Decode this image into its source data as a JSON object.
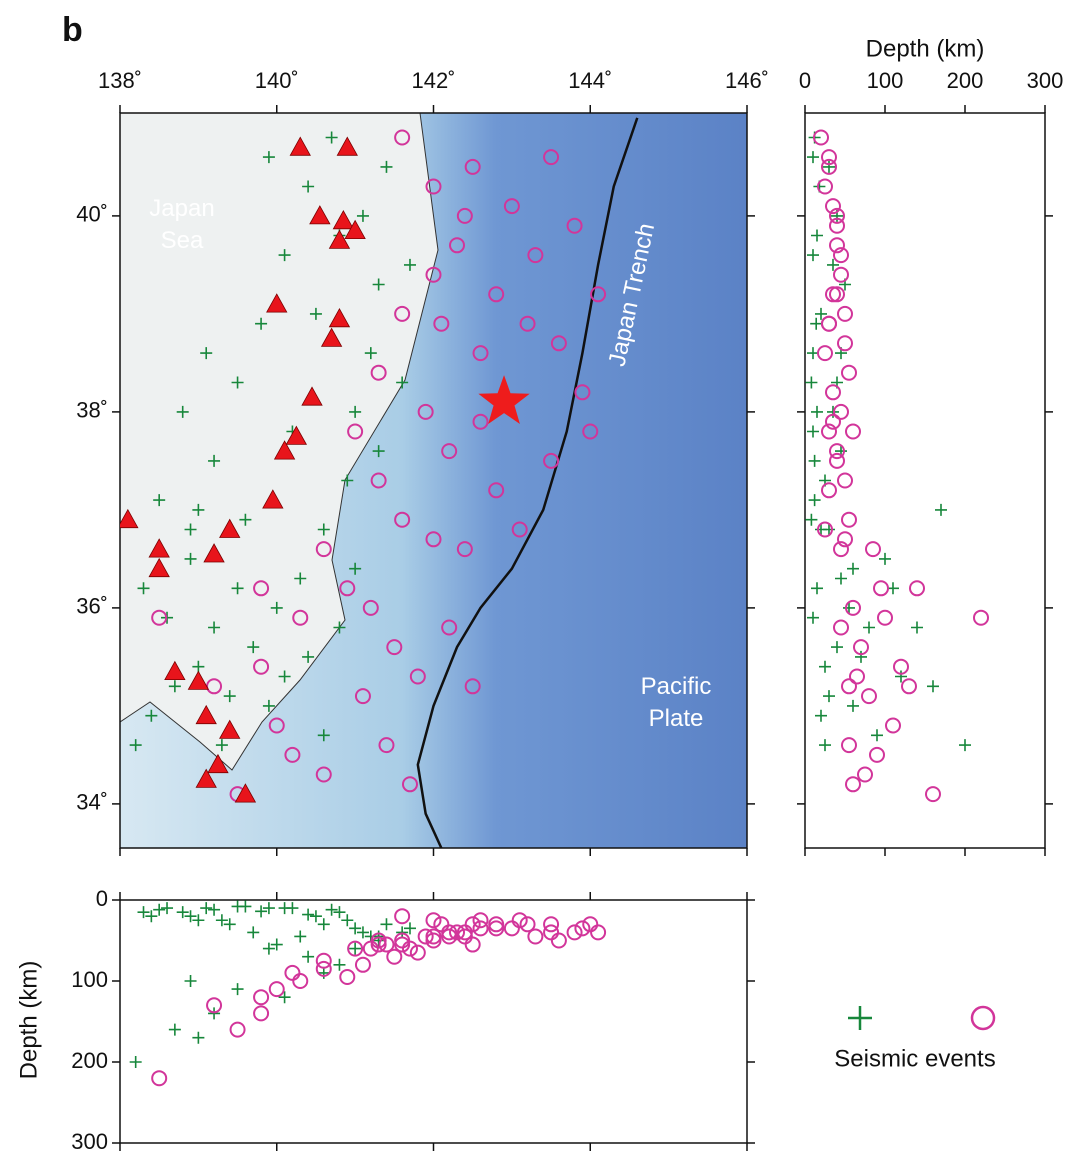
{
  "chart_data": {
    "type": "scatter",
    "panel_label": "b",
    "xlim": [
      138,
      146
    ],
    "xticks": [
      {
        "value": 138,
        "label": "138˚"
      },
      {
        "value": 140,
        "label": "140˚"
      },
      {
        "value": 142,
        "label": "142˚"
      },
      {
        "value": 144,
        "label": "144˚"
      },
      {
        "value": 146,
        "label": "146˚"
      }
    ],
    "ylim": [
      33.55,
      41.05
    ],
    "yticks": [
      {
        "value": 34,
        "label": "34˚"
      },
      {
        "value": 36,
        "label": "36˚"
      },
      {
        "value": 38,
        "label": "38˚"
      },
      {
        "value": 40,
        "label": "40˚"
      }
    ],
    "depth_lim": [
      0,
      300
    ],
    "depth_ticks": [
      0,
      100,
      200,
      300
    ],
    "depth_label_right": "Depth (km)",
    "depth_label_bottom": "Depth (km)",
    "annotations": {
      "sea": "Japan\nSea",
      "trench": "Japan Trench",
      "plate": "Pacific\nPlate"
    },
    "legend": {
      "label": "Seismic events"
    },
    "series": [
      {
        "marker": "plus",
        "color": "#17873b",
        "x": [
          138.3,
          138.6,
          138.9,
          139.2,
          139.5,
          139.8,
          140.1,
          140.4,
          140.7,
          139.0,
          139.4,
          139.7,
          140.0,
          140.3,
          140.6,
          140.9,
          141.0,
          141.2,
          141.3,
          141.1,
          140.2,
          139.6,
          138.5,
          138.8,
          139.1,
          140.5,
          140.8,
          139.9,
          138.4,
          139.3,
          139.9,
          140.4,
          140.8,
          141.0,
          139.5,
          139.2,
          138.7,
          140.1,
          138.9,
          141.3,
          141.6,
          141.7,
          141.4,
          139.0,
          140.6,
          138.2
        ],
        "y": [
          36.2,
          35.9,
          36.8,
          37.5,
          38.3,
          38.9,
          39.6,
          40.3,
          40.8,
          35.4,
          35.1,
          35.6,
          36.0,
          36.3,
          36.8,
          37.3,
          38.0,
          38.6,
          39.3,
          40.0,
          37.8,
          36.9,
          37.1,
          38.0,
          38.6,
          39.0,
          39.8,
          40.6,
          34.9,
          34.6,
          35.0,
          35.5,
          35.8,
          36.4,
          36.2,
          35.8,
          35.2,
          35.3,
          36.5,
          37.6,
          38.3,
          39.5,
          40.5,
          37.0,
          34.7,
          34.6
        ],
        "depth": [
          15,
          10,
          20,
          12,
          8,
          14,
          10,
          18,
          12,
          25,
          30,
          40,
          55,
          45,
          30,
          25,
          35,
          45,
          50,
          40,
          10,
          8,
          12,
          15,
          10,
          20,
          15,
          10,
          20,
          25,
          60,
          70,
          80,
          60,
          110,
          140,
          160,
          120,
          100,
          45,
          40,
          35,
          30,
          170,
          90,
          200
        ]
      },
      {
        "marker": "circle",
        "color": "#d2359a",
        "x": [
          141.6,
          142.0,
          142.5,
          143.0,
          143.5,
          142.3,
          142.8,
          143.3,
          143.8,
          142.1,
          142.6,
          143.2,
          143.9,
          141.9,
          142.2,
          142.6,
          143.5,
          141.3,
          141.6,
          142.0,
          142.4,
          142.8,
          143.1,
          141.2,
          141.5,
          141.1,
          141.8,
          142.2,
          141.4,
          141.7,
          140.6,
          140.2,
          140.0,
          140.3,
          139.8,
          139.2,
          140.6,
          141.0,
          141.3,
          141.6,
          142.0,
          142.4,
          143.6,
          144.1,
          144.0,
          139.5,
          138.5,
          139.8,
          140.9,
          142.5
        ],
        "y": [
          40.8,
          40.3,
          40.5,
          40.1,
          40.6,
          39.7,
          39.2,
          39.6,
          39.9,
          38.9,
          38.6,
          38.9,
          38.2,
          38.0,
          37.6,
          37.9,
          37.5,
          37.3,
          36.9,
          36.7,
          36.6,
          37.2,
          36.8,
          36.0,
          35.6,
          35.1,
          35.3,
          35.8,
          34.6,
          34.2,
          34.3,
          34.5,
          34.8,
          35.9,
          35.4,
          35.2,
          36.6,
          37.8,
          38.4,
          39.0,
          39.4,
          40.0,
          38.7,
          39.2,
          37.8,
          34.1,
          35.9,
          36.2,
          36.2,
          35.2
        ],
        "depth": [
          20,
          25,
          30,
          35,
          30,
          40,
          35,
          45,
          40,
          30,
          25,
          30,
          35,
          45,
          40,
          35,
          40,
          50,
          55,
          50,
          45,
          30,
          25,
          60,
          70,
          80,
          65,
          45,
          55,
          60,
          75,
          90,
          110,
          100,
          120,
          130,
          85,
          60,
          55,
          50,
          45,
          40,
          50,
          40,
          30,
          160,
          220,
          140,
          95,
          55
        ]
      }
    ],
    "volcanoes": {
      "color": "#e8141b",
      "x": [
        140.3,
        140.9,
        140.55,
        140.85,
        141.0,
        140.8,
        140.0,
        140.8,
        140.7,
        140.45,
        140.25,
        140.1,
        139.95,
        139.4,
        139.2,
        138.5,
        138.5,
        138.1,
        138.7,
        139.0,
        139.1,
        139.4,
        139.25,
        139.1,
        139.6
      ],
      "y": [
        40.7,
        40.7,
        40.0,
        39.95,
        39.85,
        39.75,
        39.1,
        38.95,
        38.75,
        38.15,
        37.75,
        37.6,
        37.1,
        36.8,
        36.55,
        36.6,
        36.4,
        36.9,
        35.35,
        35.25,
        34.9,
        34.75,
        34.4,
        34.25,
        34.1
      ]
    },
    "mainshock": {
      "x": 142.9,
      "y": 38.1,
      "color": "#ee1c1c"
    },
    "trench": {
      "x": [
        144.6,
        144.3,
        144.1,
        143.9,
        143.7,
        143.4,
        143.0,
        142.6,
        142.3,
        142.0,
        141.8,
        141.9,
        142.1
      ],
      "y": [
        41.0,
        40.3,
        39.5,
        38.6,
        37.8,
        37.0,
        36.4,
        36.0,
        35.6,
        35.0,
        34.4,
        33.9,
        33.55
      ]
    }
  }
}
